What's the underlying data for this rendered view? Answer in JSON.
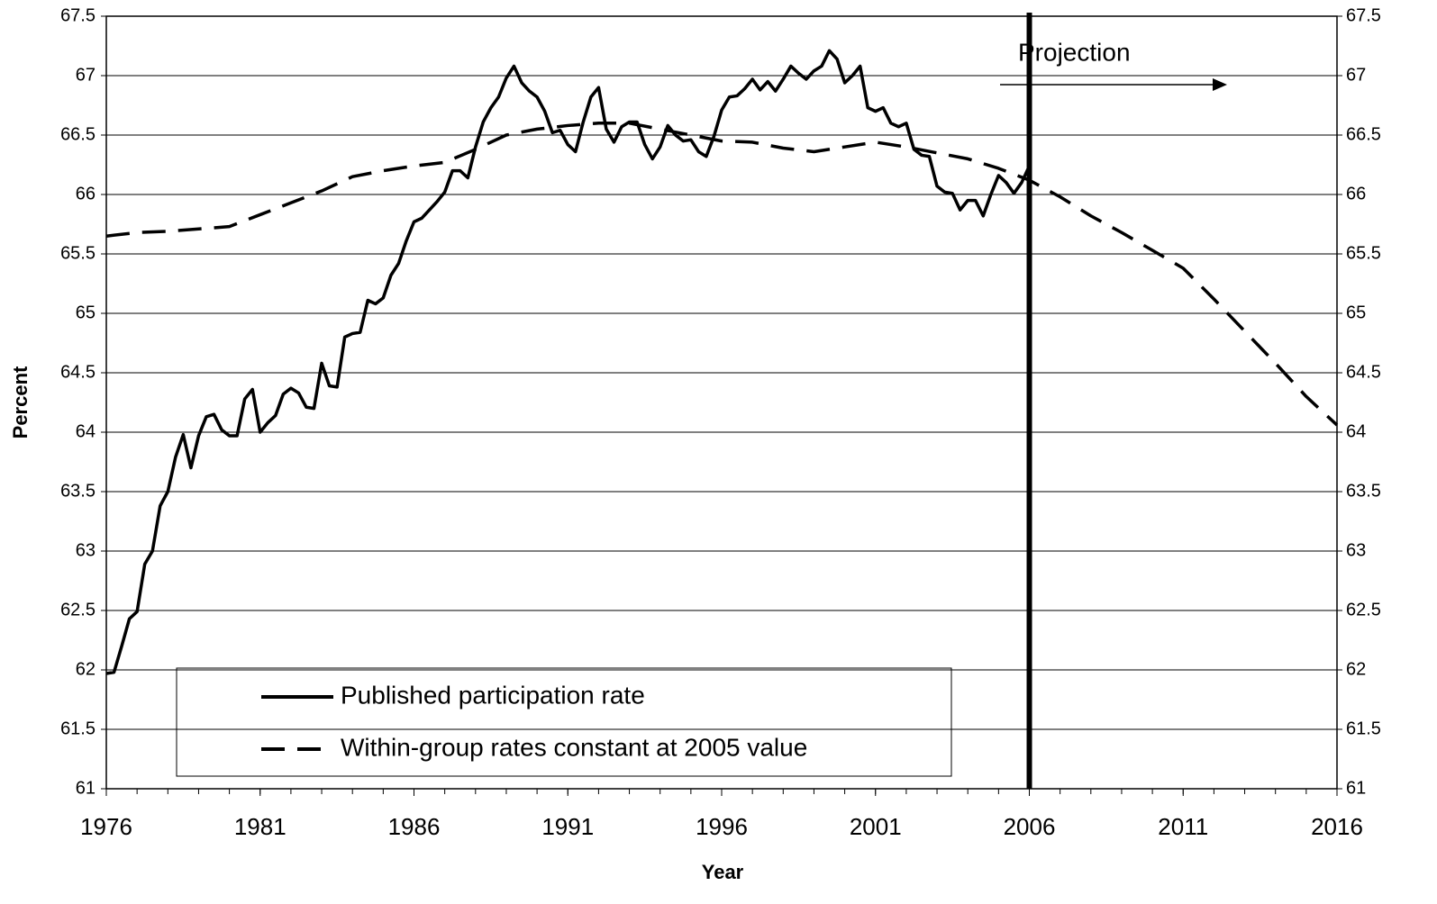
{
  "chart_data": {
    "type": "line",
    "x_label": "Year",
    "y_label": "Percent",
    "annotation": "Projection",
    "vline": 2006,
    "xlim": [
      1976,
      2016
    ],
    "xticks": [
      1976,
      1981,
      1986,
      1991,
      1996,
      2001,
      2006,
      2011,
      2016
    ],
    "ylim": [
      61,
      67.5
    ],
    "yticks": [
      61,
      61.5,
      62,
      62.5,
      63,
      63.5,
      64,
      64.5,
      65,
      65.5,
      66,
      66.5,
      67,
      67.5
    ],
    "y2lim": [
      61,
      67.5
    ],
    "y2ticks": [
      61,
      61.5,
      62,
      62.5,
      63,
      63.5,
      64,
      64.5,
      65,
      65.5,
      66,
      66.5,
      67,
      67.5
    ],
    "grid": true,
    "series": [
      {
        "name": "Published participation rate",
        "color": "#000000",
        "line_style": "solid",
        "x": [
          1976,
          1976.25,
          1976.5,
          1976.75,
          1977,
          1977.25,
          1977.5,
          1977.75,
          1978,
          1978.25,
          1978.5,
          1978.75,
          1979,
          1979.25,
          1979.5,
          1979.75,
          1980,
          1980.25,
          1980.5,
          1980.75,
          1981,
          1981.25,
          1981.5,
          1981.75,
          1982,
          1982.25,
          1982.5,
          1982.75,
          1983,
          1983.25,
          1983.5,
          1983.75,
          1984,
          1984.25,
          1984.5,
          1984.75,
          1985,
          1985.25,
          1985.5,
          1985.75,
          1986,
          1986.25,
          1986.5,
          1986.75,
          1987,
          1987.25,
          1987.5,
          1987.75,
          1988,
          1988.25,
          1988.5,
          1988.75,
          1989,
          1989.25,
          1989.5,
          1989.75,
          1990,
          1990.25,
          1990.5,
          1990.75,
          1991,
          1991.25,
          1991.5,
          1991.75,
          1992,
          1992.25,
          1992.5,
          1992.75,
          1993,
          1993.25,
          1993.5,
          1993.75,
          1994,
          1994.25,
          1994.5,
          1994.75,
          1995,
          1995.25,
          1995.5,
          1995.75,
          1996,
          1996.25,
          1996.5,
          1996.75,
          1997,
          1997.25,
          1997.5,
          1997.75,
          1998,
          1998.25,
          1998.5,
          1998.75,
          1999,
          1999.25,
          1999.5,
          1999.75,
          2000,
          2000.25,
          2000.5,
          2000.75,
          2001,
          2001.25,
          2001.5,
          2001.75,
          2002,
          2002.25,
          2002.5,
          2002.75,
          2003,
          2003.25,
          2003.5,
          2003.75,
          2004,
          2004.25,
          2004.5,
          2004.75,
          2005,
          2005.25,
          2005.5,
          2005.75,
          2006
        ],
        "values": [
          61.97,
          61.98,
          62.2,
          62.43,
          62.49,
          62.89,
          63.0,
          63.38,
          63.5,
          63.79,
          63.98,
          63.7,
          63.97,
          64.13,
          64.15,
          64.02,
          63.97,
          63.97,
          64.28,
          64.36,
          64.0,
          64.08,
          64.14,
          64.32,
          64.37,
          64.33,
          64.21,
          64.2,
          64.58,
          64.39,
          64.38,
          64.8,
          64.83,
          64.84,
          65.11,
          65.08,
          65.13,
          65.32,
          65.42,
          65.61,
          65.77,
          65.8,
          65.87,
          65.94,
          66.02,
          66.2,
          66.2,
          66.14,
          66.4,
          66.61,
          66.73,
          66.82,
          66.98,
          67.08,
          66.94,
          66.87,
          66.82,
          66.7,
          66.52,
          66.54,
          66.42,
          66.36,
          66.61,
          66.82,
          66.9,
          66.55,
          66.44,
          66.57,
          66.61,
          66.61,
          66.42,
          66.3,
          66.4,
          66.58,
          66.5,
          66.45,
          66.46,
          66.36,
          66.32,
          66.49,
          66.71,
          66.82,
          66.83,
          66.89,
          66.97,
          66.88,
          66.95,
          66.87,
          66.97,
          67.08,
          67.02,
          66.97,
          67.04,
          67.08,
          67.21,
          67.14,
          66.94,
          67.0,
          67.08,
          66.73,
          66.7,
          66.73,
          66.6,
          66.57,
          66.6,
          66.38,
          66.33,
          66.32,
          66.07,
          66.02,
          66.01,
          65.87,
          65.95,
          65.95,
          65.82,
          66.0,
          66.16,
          66.1,
          66.01,
          66.1,
          66.24
        ]
      },
      {
        "name": "Within-group rates constant at 2005 value",
        "color": "#000000",
        "line_style": "dashed",
        "x": [
          1976,
          1977,
          1978,
          1979,
          1980,
          1981,
          1982,
          1983,
          1984,
          1985,
          1986,
          1987,
          1988,
          1989,
          1990,
          1991,
          1992,
          1993,
          1994,
          1995,
          1996,
          1997,
          1998,
          1999,
          2000,
          2001,
          2002,
          2003,
          2004,
          2005,
          2006,
          2007,
          2008,
          2009,
          2010,
          2011,
          2012,
          2013,
          2014,
          2015,
          2016
        ],
        "values": [
          65.65,
          65.68,
          65.69,
          65.71,
          65.73,
          65.83,
          65.93,
          66.03,
          66.15,
          66.2,
          66.24,
          66.27,
          66.38,
          66.5,
          66.55,
          66.58,
          66.6,
          66.6,
          66.55,
          66.5,
          66.45,
          66.44,
          66.39,
          66.36,
          66.4,
          66.44,
          66.4,
          66.35,
          66.3,
          66.22,
          66.12,
          65.98,
          65.82,
          65.68,
          65.53,
          65.38,
          65.12,
          64.85,
          64.58,
          64.3,
          64.06
        ]
      }
    ]
  }
}
